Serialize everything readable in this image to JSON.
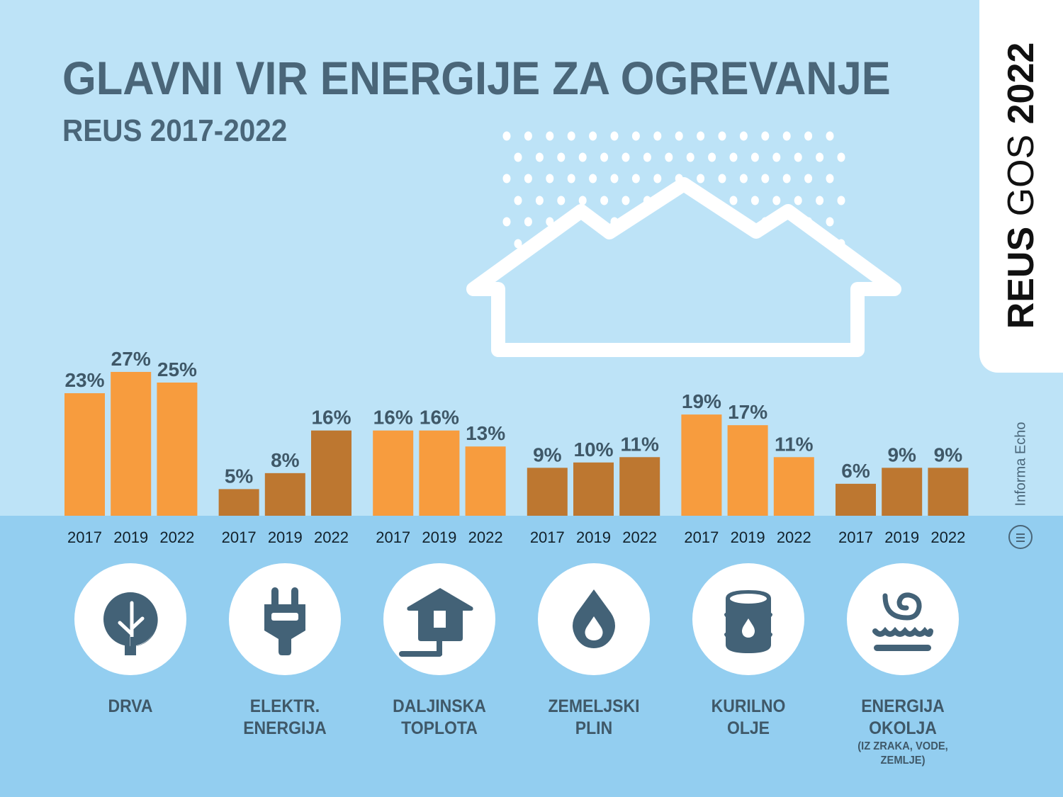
{
  "header": {
    "title": "GLAVNI VIR ENERGIJE ZA OGREVANJE",
    "subtitle": "REUS 2017-2022"
  },
  "side_tab": {
    "bold_part": "REUS",
    "light_part": "GOS",
    "year": "2022"
  },
  "brand": {
    "name": "Informa Echo",
    "logo_icon": "hamburger-circle-icon"
  },
  "colors": {
    "highlight_bar": "#f79c3e",
    "normal_bar": "#bd7730",
    "text_dark": "#3f5868",
    "bg_top": "#bde3f7",
    "bg_bottom": "#93cef0"
  },
  "chart_data": {
    "type": "bar",
    "title": "GLAVNI VIR ENERGIJE ZA OGREVANJE",
    "subtitle": "REUS 2017-2022",
    "xlabel": "",
    "ylabel": "",
    "ylim": [
      0,
      27
    ],
    "grid": false,
    "unit": "%",
    "years": [
      "2017",
      "2019",
      "2022"
    ],
    "groups": [
      {
        "name": "DRVA",
        "sub": "",
        "icon": "tree-icon",
        "highlight": true,
        "values": [
          23,
          27,
          25
        ],
        "labels": [
          "23%",
          "27%",
          "25%"
        ]
      },
      {
        "name": "ELEKTR. ENERGIJA",
        "line1": "ELEKTR.",
        "line2": "ENERGIJA",
        "sub": "",
        "icon": "plug-icon",
        "highlight": false,
        "values": [
          5,
          8,
          16
        ],
        "labels": [
          "5%",
          "8%",
          "16%"
        ]
      },
      {
        "name": "DALJINSKA TOPLOTA",
        "line1": "DALJINSKA",
        "line2": "TOPLOTA",
        "sub": "",
        "icon": "district-heating-house-icon",
        "highlight": true,
        "values": [
          16,
          16,
          13
        ],
        "labels": [
          "16%",
          "16%",
          "13%"
        ]
      },
      {
        "name": "ZEMELJSKI PLIN",
        "line1": "ZEMELJSKI",
        "line2": "PLIN",
        "sub": "",
        "icon": "gas-drop-icon",
        "highlight": false,
        "values": [
          9,
          10,
          11
        ],
        "labels": [
          "9%",
          "10%",
          "11%"
        ]
      },
      {
        "name": "KURILNO OLJE",
        "line1": "KURILNO",
        "line2": "OLJE",
        "sub": "",
        "icon": "oil-barrel-icon",
        "highlight": true,
        "values": [
          19,
          17,
          11
        ],
        "labels": [
          "19%",
          "17%",
          "11%"
        ]
      },
      {
        "name": "ENERGIJA OKOLJA",
        "line1": "ENERGIJA",
        "line2": "OKOLJA",
        "sub1": "(IZ ZRAKA, VODE,",
        "sub2": "ZEMLJE)",
        "icon": "ambient-energy-icon",
        "highlight": false,
        "values": [
          6,
          9,
          9
        ],
        "labels": [
          "6%",
          "9%",
          "9%"
        ]
      }
    ]
  }
}
